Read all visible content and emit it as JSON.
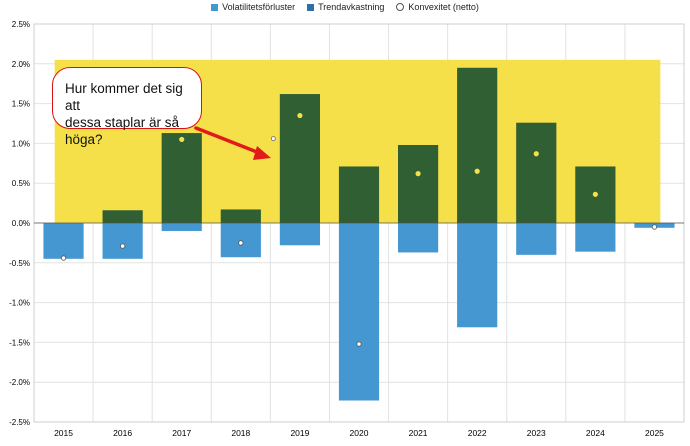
{
  "legend": [
    {
      "label": "Volatilitetsförluster",
      "color": "#4497d0",
      "kind": "square"
    },
    {
      "label": "Trendavkastning",
      "color": "#2e6fa8",
      "kind": "square"
    },
    {
      "label": "Konvexitet (netto)",
      "color": "#ffffff",
      "kind": "dot"
    }
  ],
  "callout": {
    "line1": "Hur kommer det sig att",
    "line2": "dessa staplar är så höga?"
  },
  "colors": {
    "highlight": "#f6e04a",
    "positive_bar": "#2f5f32",
    "negative_bar": "#4497d0",
    "dot_fill": "#f6e04a",
    "arrow": "#e11a1a"
  },
  "chart_data": {
    "type": "bar",
    "categories": [
      "2015",
      "2016",
      "2017",
      "2018",
      "2019",
      "2020",
      "2021",
      "2022",
      "2023",
      "2024",
      "2025"
    ],
    "series": [
      {
        "name": "Volatilitetsförluster",
        "values": [
          -0.45,
          -0.45,
          -0.1,
          -0.43,
          -0.28,
          -2.23,
          -0.37,
          -1.31,
          -0.4,
          -0.36,
          -0.06
        ]
      },
      {
        "name": "Trendavkastning",
        "values": [
          0,
          0.16,
          1.13,
          0.17,
          1.62,
          0.71,
          0.98,
          1.95,
          1.26,
          0.71,
          0
        ]
      },
      {
        "name": "Konvexitet (netto)",
        "values": [
          -0.44,
          -0.29,
          1.05,
          -0.25,
          1.35,
          -1.52,
          0.62,
          0.65,
          0.87,
          0.36,
          -0.05
        ]
      }
    ],
    "extra_point": {
      "category_index": 3.55,
      "value": 1.06
    },
    "highlight_band": {
      "from_category": 0.35,
      "to_category": 10.6,
      "ymin": 0,
      "ymax": 2.05
    },
    "yticks": [
      "-2.5%",
      "-2.0%",
      "-1.5%",
      "-1.0%",
      "-0.5%",
      "0.0%",
      "0.5%",
      "1.0%",
      "1.5%",
      "2.0%",
      "2.5%"
    ],
    "ylim": [
      -2.5,
      2.5
    ],
    "grid": true,
    "legend_position": "top"
  }
}
